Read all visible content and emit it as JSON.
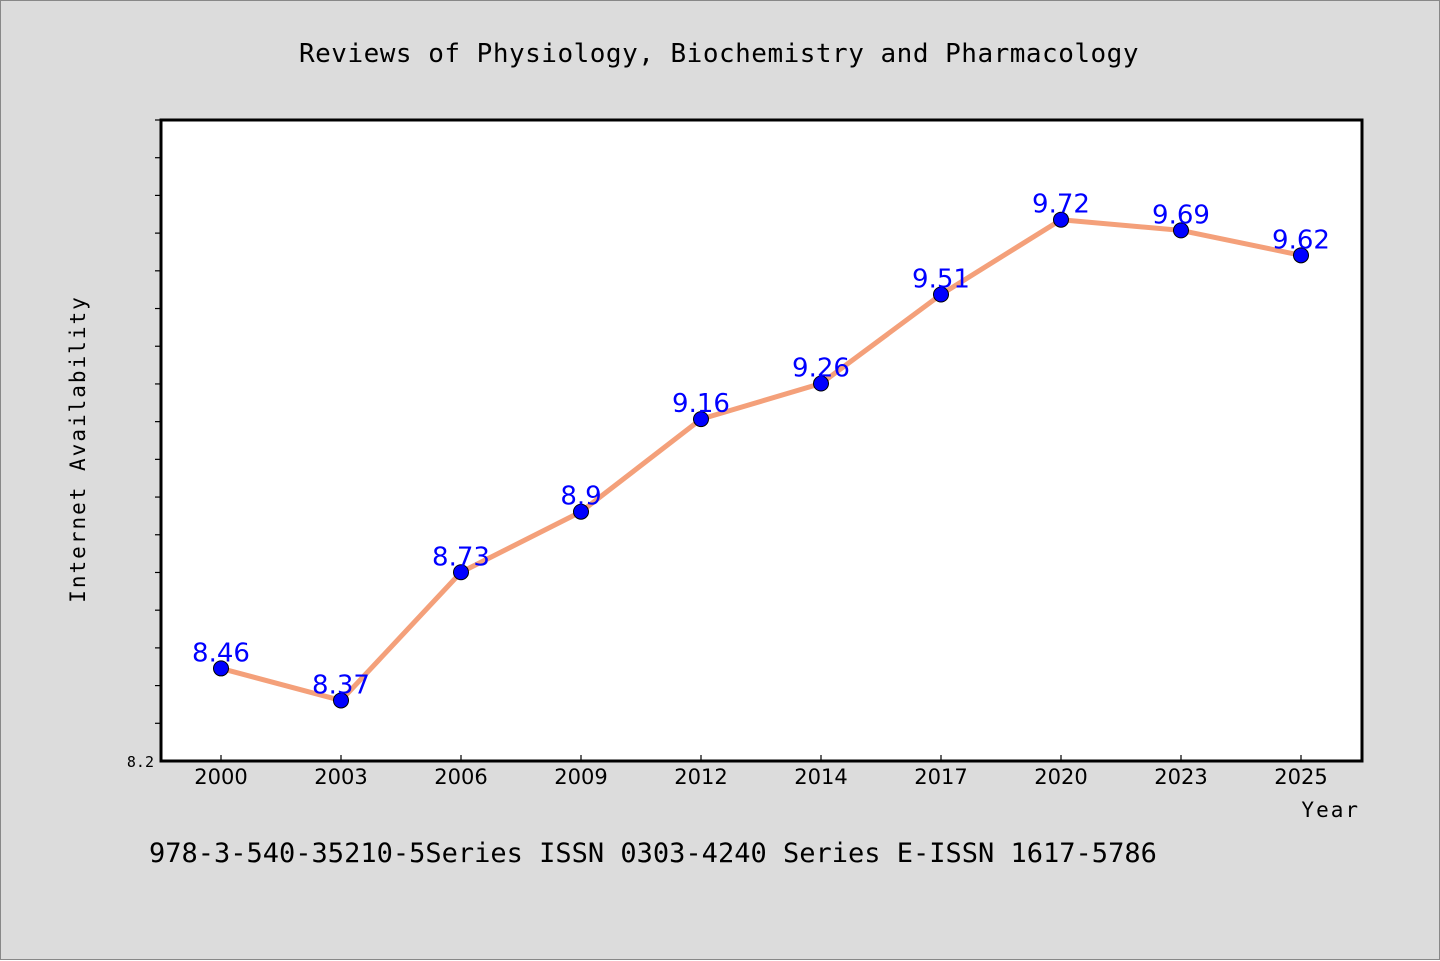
{
  "chart_data": {
    "type": "line",
    "title": "Reviews of Physiology, Biochemistry and Pharmacology",
    "xlabel": "Year",
    "ylabel": "Internet Availability",
    "ylim": [
      8.2,
      10.0
    ],
    "y_tick_labels": [
      "8.2"
    ],
    "categories": [
      "2000",
      "2003",
      "2006",
      "2009",
      "2012",
      "2014",
      "2017",
      "2020",
      "2023",
      "2025"
    ],
    "series": [
      {
        "values": [
          8.46,
          8.37,
          8.73,
          8.9,
          9.16,
          9.26,
          9.51,
          9.72,
          9.69,
          9.62
        ],
        "data_labels": [
          "8.46",
          "8.37",
          "8.73",
          "8.9",
          "9.16",
          "9.26",
          "9.51",
          "9.72",
          "9.69",
          "9.62"
        ],
        "line_color": "#f4a07a",
        "marker_color": "#0000ff"
      }
    ],
    "grid": false,
    "footer": "978-3-540-35210-5Series ISSN 0303-4240 Series E-ISSN 1617-5786",
    "background_color": "#dcdcdc",
    "plot_background": "#ffffff"
  }
}
